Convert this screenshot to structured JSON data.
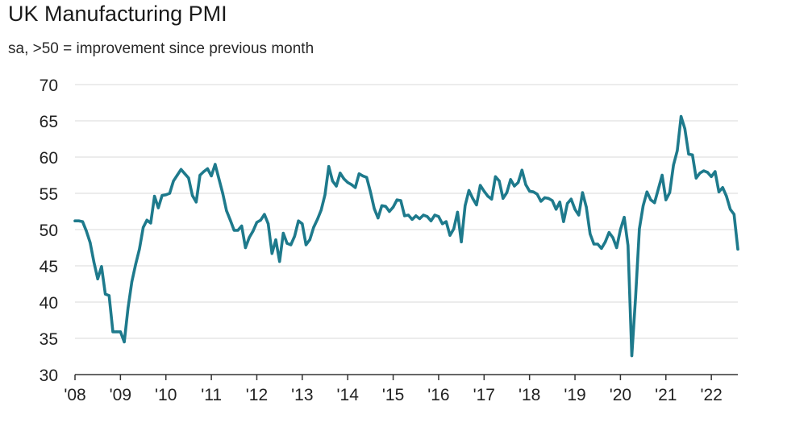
{
  "chart_data": {
    "type": "line",
    "title": "UK Manufacturing PMI",
    "subtitle": "sa, >50 = improvement since previous month",
    "xlabel": "",
    "ylabel": "",
    "ylim": [
      30,
      70
    ],
    "yticks": [
      70,
      65,
      60,
      55,
      50,
      45,
      40,
      35,
      30
    ],
    "xlim": [
      2008.0,
      2022.583
    ],
    "xticks": [
      {
        "label": "'08",
        "value": 2008
      },
      {
        "label": "'09",
        "value": 2009
      },
      {
        "label": "'10",
        "value": 2010
      },
      {
        "label": "'11",
        "value": 2011
      },
      {
        "label": "'12",
        "value": 2012
      },
      {
        "label": "'13",
        "value": 2013
      },
      {
        "label": "'14",
        "value": 2014
      },
      {
        "label": "'15",
        "value": 2015
      },
      {
        "label": "'16",
        "value": 2016
      },
      {
        "label": "'17",
        "value": 2017
      },
      {
        "label": "'18",
        "value": 2018
      },
      {
        "label": "'19",
        "value": 2019
      },
      {
        "label": "'20",
        "value": 2020
      },
      {
        "label": "'21",
        "value": 2021
      },
      {
        "label": "'22",
        "value": 2022
      }
    ],
    "grid": "horizontal",
    "line_color": "#1e7a8c",
    "series": [
      {
        "start": "2008-01",
        "frequency": "monthly",
        "values": [
          51.2,
          51.2,
          51.1,
          49.8,
          48.2,
          45.5,
          43.2,
          44.9,
          41.1,
          40.9,
          35.9,
          35.9,
          35.9,
          34.5,
          39.2,
          42.8,
          45.2,
          47.3,
          50.3,
          51.3,
          50.9,
          54.6,
          53.0,
          54.7,
          54.8,
          55.0,
          56.7,
          57.5,
          58.3,
          57.7,
          57.1,
          54.7,
          53.8,
          57.5,
          58.0,
          58.4,
          57.4,
          59.0,
          57.0,
          55.0,
          52.6,
          51.3,
          49.9,
          49.9,
          50.5,
          47.5,
          48.9,
          49.8,
          51.0,
          51.3,
          52.1,
          50.8,
          46.7,
          48.6,
          45.6,
          49.5,
          48.1,
          47.9,
          49.1,
          51.2,
          50.8,
          47.9,
          48.6,
          50.3,
          51.4,
          52.7,
          54.8,
          58.7,
          56.7,
          56.0,
          57.8,
          57.0,
          56.5,
          56.2,
          55.8,
          57.7,
          57.4,
          57.2,
          55.2,
          52.9,
          51.6,
          53.3,
          53.2,
          52.5,
          53.1,
          54.1,
          54.0,
          51.9,
          52.0,
          51.4,
          51.9,
          51.5,
          52.0,
          51.8,
          51.2,
          52.0,
          51.8,
          50.8,
          51.1,
          49.2,
          50.1,
          52.4,
          48.3,
          53.3,
          55.4,
          54.3,
          53.4,
          56.1,
          55.3,
          54.6,
          54.2,
          57.3,
          56.7,
          54.3,
          55.1,
          56.9,
          56.0,
          56.5,
          58.2,
          56.2,
          55.3,
          55.2,
          54.9,
          53.9,
          54.4,
          54.3,
          54.0,
          52.8,
          53.8,
          51.1,
          53.6,
          54.2,
          52.8,
          52.0,
          55.1,
          53.1,
          49.4,
          48.0,
          48.0,
          47.4,
          48.3,
          49.6,
          48.9,
          47.5,
          50.0,
          51.7,
          47.8,
          32.6,
          40.7,
          50.1,
          53.3,
          55.2,
          54.1,
          53.7,
          55.6,
          57.5,
          54.1,
          55.1,
          58.9,
          60.9,
          65.6,
          63.9,
          60.4,
          60.3,
          57.1,
          57.8,
          58.1,
          57.9,
          57.3,
          58.0,
          55.2,
          55.8,
          54.6,
          52.8,
          52.1,
          47.3
        ]
      }
    ]
  }
}
